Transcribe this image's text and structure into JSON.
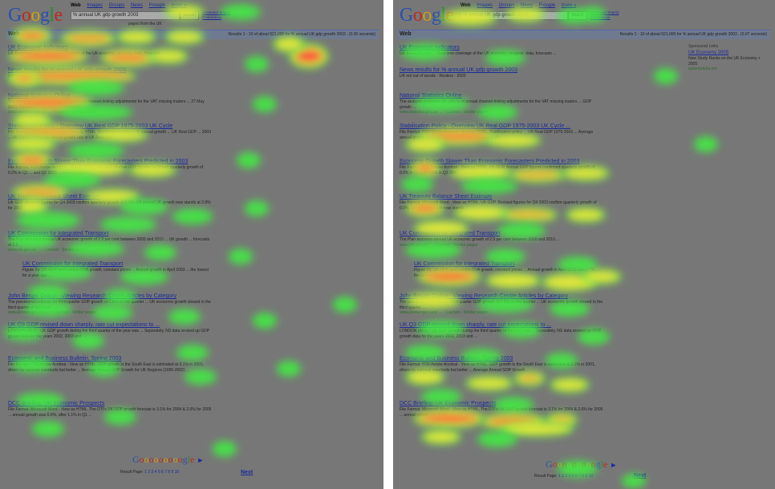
{
  "panels": [
    {
      "id": "left",
      "search": {
        "logo": "Google",
        "tabs": [
          "Web",
          "Images",
          "Groups",
          "News",
          "Froogle",
          "more »"
        ],
        "query": "% annual UK gdp growth 2003",
        "button": "Search",
        "advanced": [
          "Advanced Search",
          "Preferences"
        ],
        "subnote": "pages from the UK"
      },
      "web_label": "Web",
      "stats": "Results 1 - 10 of about 621,000 for % annual UK gdp growth 2003 . (0.30 seconds)",
      "results": [
        {
          "title": "UK Economic Indicators",
          "snippet": "UK Economy.com ... Real-time coverage of the UK economy, analysis, data, forecasts ...",
          "url": ""
        },
        {
          "title": "News results for % annual UK gdp growth 2003",
          "snippet": "UK not out of woods - Reuters - 2003",
          "url": ""
        },
        {
          "title": "National Statistics Online",
          "snippet": "The analysis examines the effects of annual chained-linking adjustments for the VAT missing traders ... 27 May 2003. Revisions to quarterly GDP growth ...",
          "url": "www.statistics.gov.uk/ ... - Cached - Similar pages"
        },
        {
          "title": "Stabilisation Policy - Overview UK Real GDP 1975-2003 UK Cycle",
          "snippet": "File Format: PDF/Adobe Acrobat - View as HTML. Stabilisation policy ... % annual growth ... UK Real GDP ... 2003 ... UK Cycle ... Average annual growth rate in UK Real GDP ...",
          "url": ""
        },
        {
          "title": "Economic Growth Slower Than Economic Forecasters Predicted in 2003",
          "snippet": "File Format: PDF/Adobe Acrobat - View as HTML. UK GDP. Annual GDP figures confirmed quarterly growth of 0.2% in Q1 ... and Q2 2003 ... annual growth ...",
          "url": ""
        },
        {
          "title": "UK Treasury Balance Sheet Estimate",
          "snippet": "UK GDP. Revised figures for Q4 2003 confirm quarterly growth of 0.9%. Q4 annual UK growth now stands at 2.8% for 2003 ...",
          "url": ""
        },
        {
          "title": "UK Commission for Integrated Transport",
          "snippet": "The Plan assumes annual UK economic growth of 2.5 per cent between 2000 and 2010 ... UK growth ... forecasts of 2.5 ...",
          "url": "www.cfit.gov.uk/ ... - Cached - Similar pages"
        },
        {
          "title": "UK Commission for Integrated Transport",
          "snippet": "Figure 2a: UK GDP and London GVA growth, constant prices ... Annual growth in April 2003 ... the lowest for a year ago ...",
          "url": ""
        },
        {
          "title": "John Berger Online - Viewing Research Centre Articles by Category",
          "snippet": "The provisional estimate for third-quarter GDP growth of 0.6% on the quarter ... UK economic growth slowed in the third quarter of this year ...",
          "url": "www.johnberger.com/ ... - Cached - Similar pages"
        },
        {
          "title": "UK Q3 GDP revised down sharply, rate cut expectations to ...",
          "snippet": "LONDON (AFX) - UK GDP growth during the third quarter of the year was ... Separately, NS data revised up GDP growth data for the years 2002, 2003 and ...",
          "url": ""
        },
        {
          "title": "Economic and Business Bulletin, Spring 2003",
          "snippet": "File Format: PDF/Adobe Acrobat - View as HTML. GDP growth in the South East is estimated at 3.1% in 2001, driven by national standards but better ... Average Annual GDP Growth for UK Regions (1995-2002) ...",
          "url": ""
        },
        {
          "title": "DCC Briefing: UK Economic Prospects",
          "snippet": "File Format: Microsoft Word - View as HTML. The DTI's UK GDP growth forecast is 3.1% for 2004 & 2.6% for 2005 ... annual growth was 0.9%, after 1.1% in Q1 ...",
          "url": ""
        }
      ],
      "sponsored": [],
      "pager": {
        "logo": "Gooooooooogle",
        "label": "Result Page:",
        "pages": [
          "1",
          "2",
          "3",
          "4",
          "5",
          "6",
          "7",
          "8",
          "9",
          "10"
        ],
        "next": "Next"
      }
    },
    {
      "id": "right",
      "search": {
        "logo": "Google",
        "tabs": [
          "Web",
          "Images",
          "Groups",
          "News",
          "Froogle",
          "more »"
        ],
        "query": "% annual UK gdp growth 2003",
        "button": "Search",
        "advanced": [
          "Advanced Search",
          "Preferences"
        ],
        "subnote": ""
      },
      "web_label": "Web",
      "stats": "Results 1 - 10 of about 621,000 for % annual UK gdp growth 2003 . (0.07 seconds)",
      "results": [
        {
          "title": "UK Economic Indicators",
          "snippet": "UK Economy.com ... Real-time coverage of the UK economy, analysis, data, forecasts ...",
          "url": ""
        },
        {
          "title": "News results for % annual UK gdp growth 2003",
          "snippet": "UK not out of woods - Reuters - 2003",
          "url": ""
        },
        {
          "title": "National Statistics Online",
          "snippet": "The analysis examines the effects of annual chained-linking adjustments for the VAT missing traders ... GDP growth ...",
          "url": "www.statistics.gov.uk/ ... - Cached - Similar pages"
        },
        {
          "title": "Stabilisation Policy - Overview UK Real GDP 1975-2003 UK Cycle ...",
          "snippet": "File Format: PDF/Adobe Acrobat - View as HTML. Stabilisation policy ... UK Real GDP 1975-2003 ... Average annual growth rate in UK Real GDP ... 2003 is over 2.4% ...",
          "url": ""
        },
        {
          "title": "Economic Growth Slower Than Economic Forecasters Predicted in 2003",
          "snippet": "File Format: PDF/Adobe Acrobat - View as HTML. UK GDP. Annual GDP figures confirmed quarterly growth of 0.2% in Q1 and 0.6% in Q2 2003 ... annual growth ...",
          "url": ""
        },
        {
          "title": "UK Treasury Balance Sheet Estimate",
          "snippet": "File Format: Microsoft Word - View as HTML. UK GDP. Revised figures for Q4 2003 confirm quarterly growth of 0.9%. Q4 annual growth now stands ...",
          "url": ""
        },
        {
          "title": "UK Commission for Integrated Transport",
          "snippet": "The Plan assumes annual UK economic growth of 2.5 per cent between 2000 and 2010 ...",
          "url": "www.cfit.gov.uk/ ... - Cached - Similar pages"
        },
        {
          "title": "UK Commission for Integrated Transport",
          "snippet": "Figure 2a: UK GDP and London GVA growth, constant prices ... Annual growth in April 2003 was 2.7% ... the lowest for a year ago ...",
          "url": ""
        },
        {
          "title": "John Berger Online - Viewing Research Centre Articles by Category",
          "snippet": "The provisional estimate for third-quarter GDP growth of 0.6% on the quarter ... UK economic growth slowed in the third quarter ...",
          "url": "www.johnberger.com/ ... - Cached - Similar pages"
        },
        {
          "title": "UK Q3 GDP revised down sharply, rate cut expectations to ...",
          "snippet": "LONDON (AFX) - UK GDP growth during the third quarter of the year was ... Separately, NS data revised up GDP growth data for the years 2002, 2003 and ...",
          "url": ""
        },
        {
          "title": "Economic and Business Bulletin, Spring 2003",
          "snippet": "File Format: PDF/Adobe Acrobat - View as HTML. GDP growth in the South East is estimated at 3.1% in 2001, driven by national standards but better ... Average Annual GDP Growth ...",
          "url": ""
        },
        {
          "title": "DCC Briefing: UK Economic Prospects",
          "snippet": "File Format: Microsoft Word - View as HTML. The DTI's UK GDP growth forecast is 3.1% for 2004 & 2.6% for 2005 ... annual growth was 0.9% ...",
          "url": ""
        }
      ],
      "sponsored": [
        {
          "heading": "Sponsored Links"
        },
        {
          "title": "UK Economy 2005",
          "snippet": "New Study Ranks on the UK Economy + 2005",
          "url": "www.tudo2u.net"
        }
      ],
      "pager": {
        "logo": "Gooooooooogle",
        "label": "Result Page:",
        "pages": [
          "1",
          "2",
          "3",
          "4",
          "5",
          "6",
          "7",
          "8",
          "9",
          "10"
        ],
        "next": "Next"
      }
    }
  ],
  "colors": {
    "hot": "#ff3b3b",
    "warm": "#f5e33a",
    "cool": "#3ef03e",
    "screen": "#777777"
  }
}
